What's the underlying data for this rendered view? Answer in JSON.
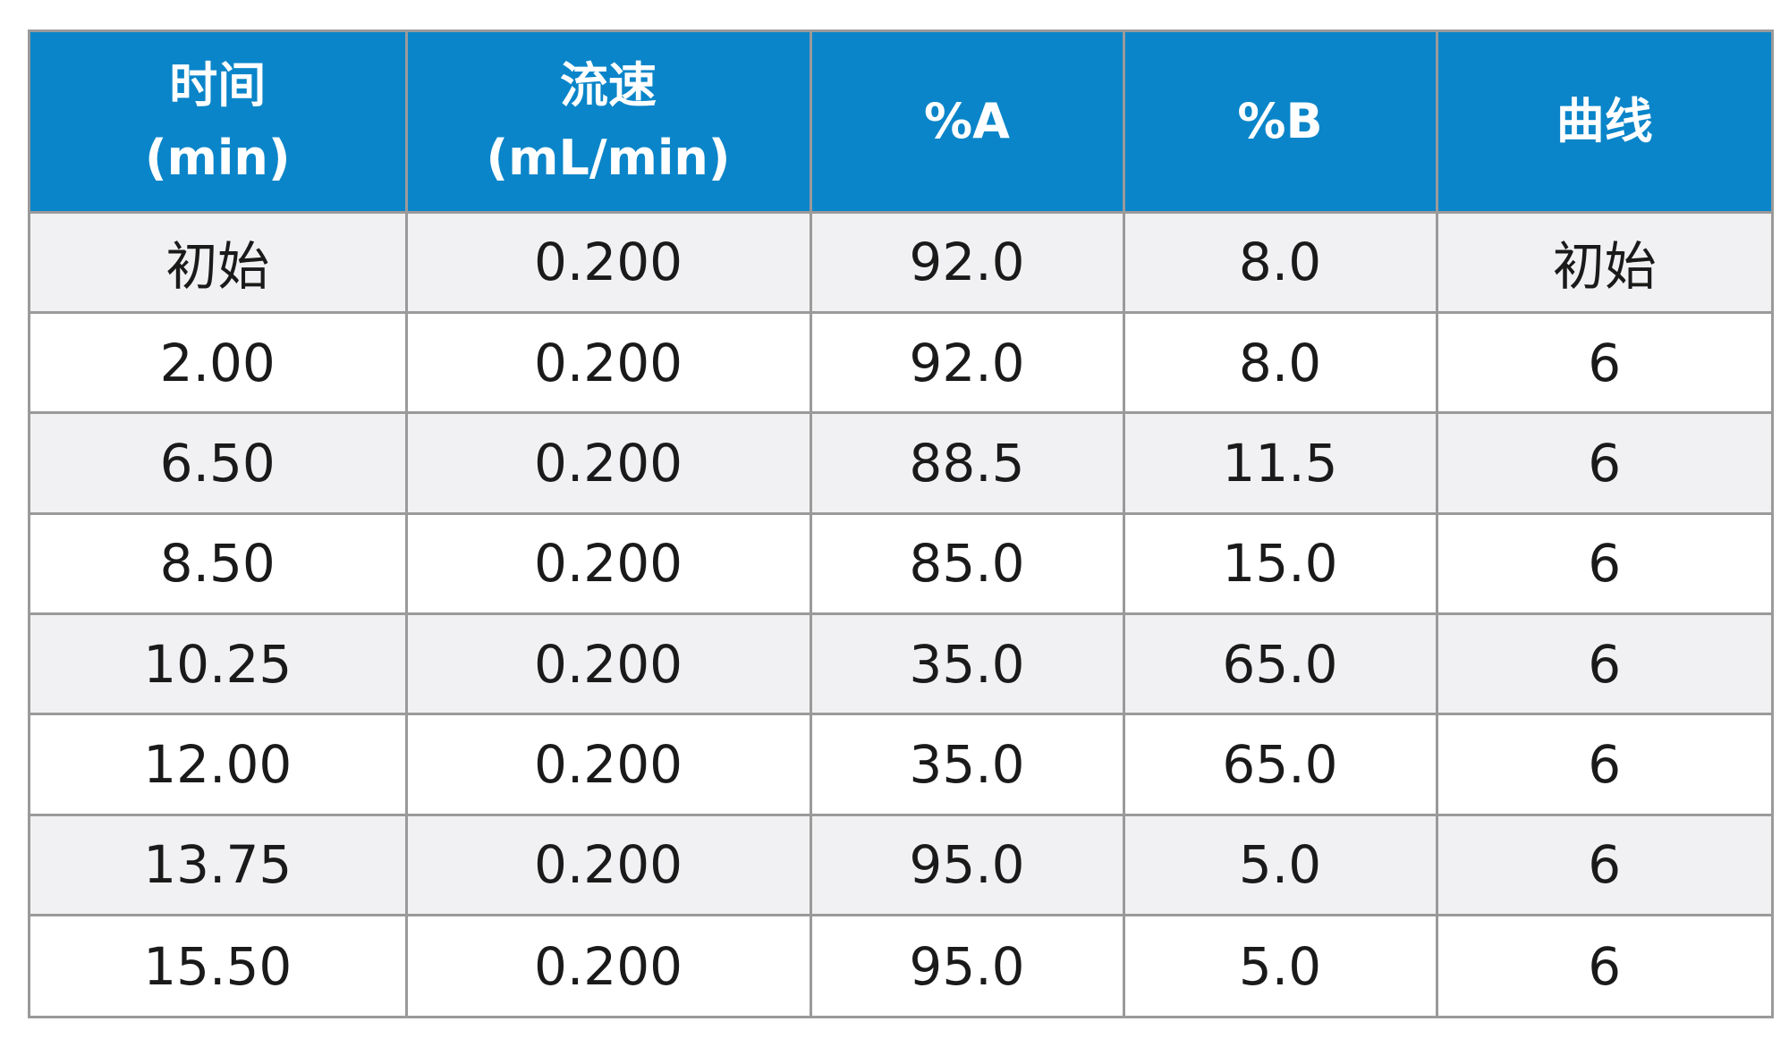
{
  "table": {
    "headers": [
      [
        "时间",
        "(min)"
      ],
      [
        "流速",
        "(mL/min)"
      ],
      [
        "%A"
      ],
      [
        "%B"
      ],
      [
        "曲线"
      ]
    ],
    "rows": [
      [
        "初始",
        "0.200",
        "92.0",
        "8.0",
        "初始"
      ],
      [
        "2.00",
        "0.200",
        "92.0",
        "8.0",
        "6"
      ],
      [
        "6.50",
        "0.200",
        "88.5",
        "11.5",
        "6"
      ],
      [
        "8.50",
        "0.200",
        "85.0",
        "15.0",
        "6"
      ],
      [
        "10.25",
        "0.200",
        "35.0",
        "65.0",
        "6"
      ],
      [
        "12.00",
        "0.200",
        "35.0",
        "65.0",
        "6"
      ],
      [
        "13.75",
        "0.200",
        "95.0",
        "5.0",
        "6"
      ],
      [
        "15.50",
        "0.200",
        "95.0",
        "5.0",
        "6"
      ]
    ]
  },
  "colors": {
    "header_bg": "#0a85c9",
    "header_text": "#ffffff",
    "row_alt_bg": "#f1f1f3",
    "row_bg": "#ffffff",
    "grid": "#9a9a9a",
    "cell_text": "#1a1a1a"
  }
}
